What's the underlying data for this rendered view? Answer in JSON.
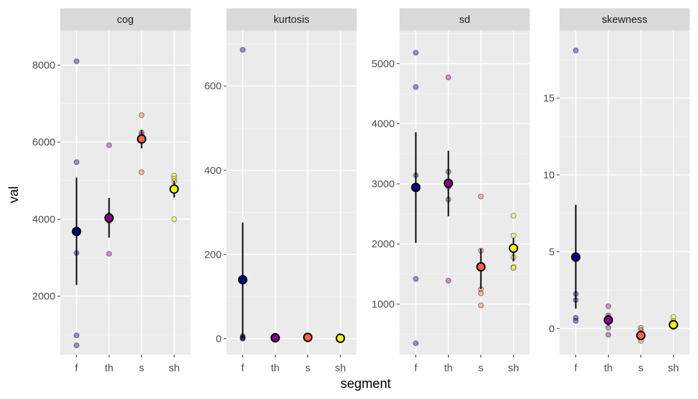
{
  "chart_data": {
    "type": "scatter",
    "title": "",
    "xlabel": "segment",
    "ylabel": "val",
    "categories": [
      "f",
      "th",
      "s",
      "sh"
    ],
    "category_colors": {
      "f": "#000080",
      "th": "#8B008B",
      "s": "#FF6347",
      "sh": "#FFFF00"
    },
    "grid": true,
    "legend": "none",
    "panels": [
      {
        "name": "cog",
        "ylim": [
          480,
          8900
        ],
        "yticks": [
          2000,
          4000,
          6000,
          8000
        ],
        "yticklabels": [
          "2000",
          "4000",
          "6000",
          "8000"
        ],
        "points": {
          "f": [
            8100,
            5480,
            3120,
            980,
            720
          ],
          "th": [
            5920,
            4100,
            4050,
            3950,
            3100
          ],
          "s": [
            6700,
            6250,
            6200,
            6150,
            5220
          ],
          "sh": [
            5130,
            5050,
            4980,
            4800,
            4000
          ]
        },
        "means": {
          "f": 3680,
          "th": 4030,
          "s": 6080,
          "sh": 4780
        },
        "errors": {
          "f": [
            2290,
            5080
          ],
          "th": [
            3520,
            4550
          ],
          "s": [
            5840,
            6320
          ],
          "sh": [
            4560,
            5000
          ]
        }
      },
      {
        "name": "kurtosis",
        "ylim": [
          -38,
          732
        ],
        "yticks": [
          0,
          200,
          400,
          600
        ],
        "yticklabels": [
          "0",
          "200",
          "400",
          "600"
        ],
        "points": {
          "f": [
            686,
            6,
            3,
            1,
            0
          ],
          "th": [
            3,
            2,
            1,
            1,
            0
          ],
          "s": [
            4,
            3,
            2,
            2,
            1
          ],
          "sh": [
            2,
            1,
            1,
            0,
            0
          ]
        },
        "means": {
          "f": 140,
          "th": 2,
          "s": 3,
          "sh": 1
        },
        "errors": {
          "f": [
            2,
            276
          ],
          "th": [
            1,
            3
          ],
          "s": [
            2,
            4
          ],
          "sh": [
            0,
            2
          ]
        }
      },
      {
        "name": "sd",
        "ylim": [
          160,
          5550
        ],
        "yticks": [
          1000,
          2000,
          3000,
          4000,
          5000
        ],
        "yticklabels": [
          "1000",
          "2000",
          "3000",
          "4000",
          "5000"
        ],
        "points": {
          "f": [
            5180,
            4610,
            3140,
            1420,
            350
          ],
          "th": [
            4770,
            3200,
            2950,
            2740,
            1390
          ],
          "s": [
            2790,
            1890,
            1250,
            1180,
            980
          ],
          "sh": [
            2470,
            2140,
            1780,
            1620,
            1600
          ]
        },
        "means": {
          "f": 2940,
          "th": 3010,
          "s": 1620,
          "sh": 1930
        },
        "errors": {
          "f": [
            2020,
            3860
          ],
          "th": [
            2460,
            3550
          ],
          "s": [
            1250,
            1920
          ],
          "sh": [
            1710,
            2100
          ]
        }
      },
      {
        "name": "skewness",
        "ylim": [
          -1.7,
          19.4
        ],
        "yticks": [
          0,
          5,
          10,
          15
        ],
        "yticklabels": [
          "0",
          "5",
          "10",
          "15"
        ],
        "points": {
          "f": [
            18.1,
            2.25,
            1.85,
            0.7,
            0.5
          ],
          "th": [
            1.45,
            0.85,
            0.4,
            0.05,
            -0.4
          ],
          "s": [
            0.05,
            -0.1,
            -0.3,
            -0.5,
            -0.8
          ],
          "sh": [
            0.75,
            0.5,
            0.3,
            0.2,
            0.1
          ]
        },
        "means": {
          "f": 4.65,
          "th": 0.55,
          "s": -0.45,
          "sh": 0.25
        },
        "errors": {
          "f": [
            1.3,
            8.05
          ],
          "th": [
            0.2,
            0.9
          ],
          "s": [
            -0.7,
            -0.2
          ],
          "sh": [
            0.1,
            0.4
          ]
        }
      }
    ]
  }
}
